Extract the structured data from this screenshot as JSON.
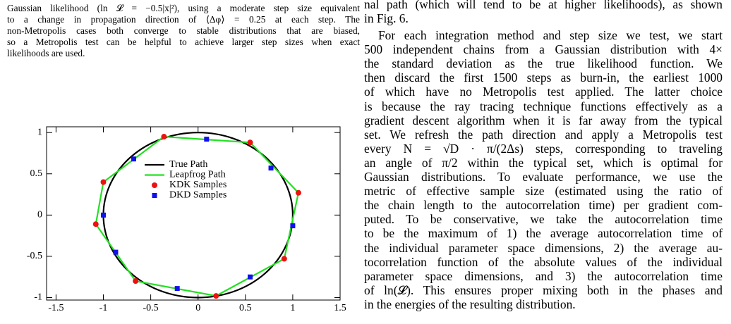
{
  "caption": {
    "lines": [
      "Gaussian likelihood (ln 𝓛 = −0.5|x|²), using a moderate step size equivalent",
      "to a change in propagation direction of ⟨Δφ⟩ = 0.25 at each step. The",
      "non-Metropolis cases both converge to stable distributions that are biased,",
      "so a Metropolis test can be helpful to achieve larger step sizes when exact",
      "likelihoods are used."
    ]
  },
  "body": {
    "lines": [
      "nal path (which will tend to be at higher likelihoods), as shown",
      "in Fig. 6.",
      "For each integration method and step size we test, we start",
      "500 independent chains from a Gaussian distribution with 4×",
      "the standard deviation as the true likelihood function. We",
      "then discard the first 1500 steps as burn-in, the earliest 1000",
      "of which have no Metropolis test applied. The latter choice",
      "is because the ray tracing technique functions effectively as a",
      "gradient descent algorithm when it is far away from the typical",
      "set. We refresh the path direction and apply a Metropolis test",
      "every N = √D · π/(2Δs) steps, corresponding to traveling",
      "an angle of π/2 within the typical set, which is optimal for",
      "Gaussian distributions. To evaluate performance, we use the",
      "metric of effective sample size (estimated using the ratio of",
      "the chain length to the autocorrelation time) per gradient com-",
      "puted. To be conservative, we take the autocorrelation time",
      "to be the maximum of 1) the average autocorrelation time of",
      "the individual parameter space dimensions, 2) the average au-",
      "tocorrelation function of the absolute values of the individual",
      "parameter space dimensions, and 3) the autocorrelation time",
      "of ln(𝓛). This ensures proper mixing both in the phases and",
      "in the energies of the resulting distribution."
    ]
  },
  "chart_data": {
    "type": "scatter",
    "xlim": [
      -1.6,
      1.5
    ],
    "ylim": [
      -1.03,
      1.07
    ],
    "xticks": [
      -1.5,
      -1,
      -0.5,
      0,
      0.5,
      1,
      1.5
    ],
    "yticks": [
      -1,
      -0.5,
      0,
      0.5,
      1
    ],
    "series": [
      {
        "name": "True Path",
        "color": "#000000",
        "radius": 1
      },
      {
        "name": "Leapfrog Path",
        "color": "#22e022",
        "x": [
          -0.36,
          0.55,
          1.06,
          0.91,
          0.19,
          -0.66,
          -1.08,
          -1.0,
          -0.36
        ],
        "y": [
          0.95,
          0.88,
          0.27,
          -0.53,
          -0.98,
          -0.8,
          -0.11,
          0.4,
          0.95
        ]
      },
      {
        "name": "KDK Samples",
        "color": "#ee1111",
        "marker": "circle",
        "x": [
          -0.36,
          0.55,
          1.06,
          0.91,
          0.19,
          -0.66,
          -1.08,
          -1.0
        ],
        "y": [
          0.95,
          0.88,
          0.27,
          -0.53,
          -0.98,
          -0.8,
          -0.11,
          0.4
        ]
      },
      {
        "name": "DKD Samples",
        "color": "#1111ee",
        "marker": "square",
        "x": [
          0.09,
          0.77,
          1.0,
          0.55,
          -0.22,
          -0.87,
          -1.0,
          -0.68
        ],
        "y": [
          0.92,
          0.57,
          -0.13,
          -0.75,
          -0.89,
          -0.45,
          0.0,
          0.68
        ]
      }
    ]
  }
}
